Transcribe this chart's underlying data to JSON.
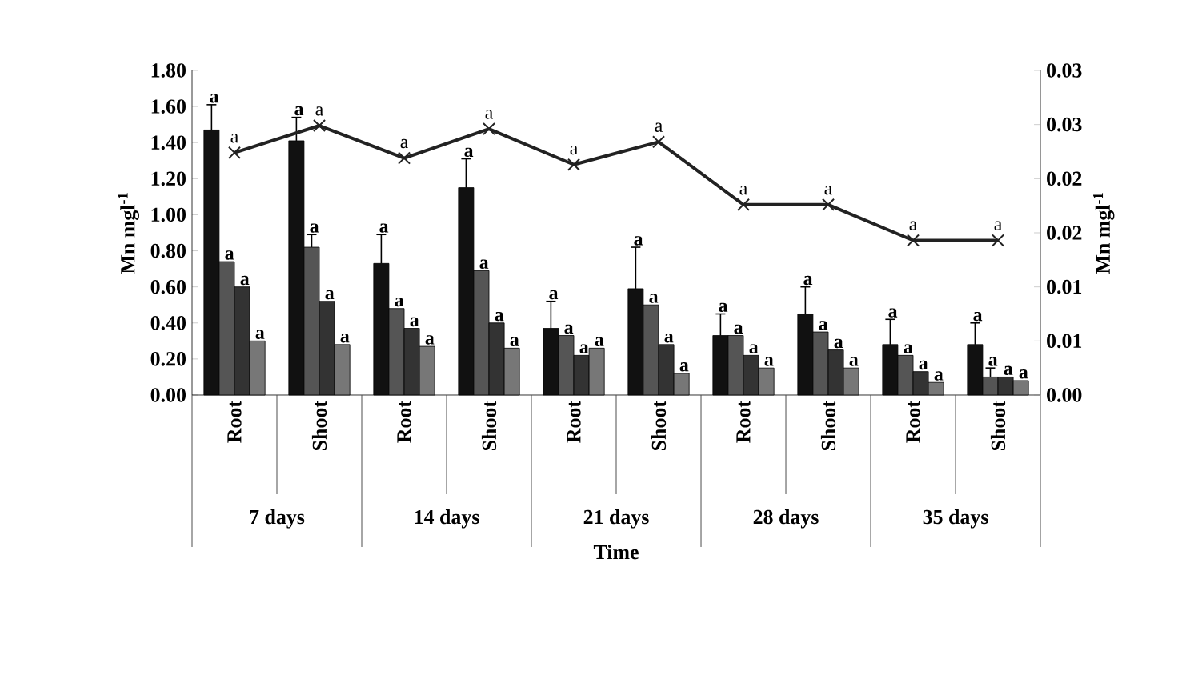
{
  "chart_data": {
    "type": "bar",
    "categories": [
      "Root",
      "Shoot",
      "Root",
      "Shoot",
      "Root",
      "Shoot",
      "Root",
      "Shoot",
      "Root",
      "Shoot"
    ],
    "series": [
      {
        "color": "#111111",
        "values": [
          1.47,
          1.41,
          0.73,
          1.15,
          0.37,
          0.59,
          0.33,
          0.45,
          0.28,
          0.28
        ],
        "errors": [
          [
            1.47,
            1.61
          ],
          [
            1.41,
            1.54
          ],
          [
            0.73,
            0.89
          ],
          [
            1.15,
            1.31
          ],
          [
            0.37,
            0.52
          ],
          [
            0.59,
            0.82
          ],
          [
            0.33,
            0.45
          ],
          [
            0.45,
            0.6
          ],
          [
            0.28,
            0.42
          ],
          [
            0.28,
            0.4
          ]
        ],
        "value_labels": [
          "a",
          "a",
          "a",
          "a",
          "a",
          "a",
          "a",
          "a",
          "a",
          "a"
        ]
      },
      {
        "color": "#555555",
        "values": [
          0.74,
          0.82,
          0.48,
          0.69,
          0.33,
          0.5,
          0.33,
          0.35,
          0.22,
          0.1
        ],
        "errors": [
          null,
          [
            0.82,
            0.89
          ],
          null,
          null,
          null,
          null,
          null,
          null,
          null,
          [
            0.1,
            0.15
          ]
        ],
        "value_labels": [
          "a",
          "a",
          "a",
          "a",
          "a",
          "a",
          "a",
          "a",
          "a",
          "a"
        ]
      },
      {
        "color": "#333333",
        "values": [
          0.6,
          0.52,
          0.37,
          0.4,
          0.22,
          0.28,
          0.22,
          0.25,
          0.13,
          0.1
        ],
        "value_labels": [
          "a",
          "a",
          "a",
          "a",
          "a",
          "a",
          "a",
          "a",
          "a",
          "a"
        ]
      },
      {
        "color": "#777777",
        "values": [
          0.3,
          0.28,
          0.27,
          0.26,
          0.26,
          0.12,
          0.15,
          0.15,
          0.07,
          0.08
        ],
        "value_labels": [
          "a",
          "a",
          "a",
          "a",
          "a",
          "a",
          "a",
          "a",
          "a",
          "a"
        ]
      },
      {
        "type": "line",
        "axis": "y2",
        "color": "#222222",
        "marker": "cross",
        "values": [
          0.0224,
          0.0249,
          0.0219,
          0.0246,
          0.0213,
          0.0234,
          0.0176,
          0.0176,
          0.0143,
          0.0143
        ],
        "value_labels": [
          "a",
          "a",
          "a",
          "a",
          "a",
          "a",
          "a",
          "a",
          "a",
          "a"
        ]
      }
    ],
    "xlabel": "Time",
    "ylabel": "Mn mgl$^{-1}$",
    "y2label": "Mn mgl$^{-1}$",
    "annotations": [
      "7 days",
      "14 days",
      "21 days",
      "28 days",
      "35 days"
    ],
    "ylim": [
      0,
      1.8
    ],
    "yticks": [
      {
        "value": 0,
        "label": "0.00"
      },
      {
        "value": 0.2,
        "label": "0.20"
      },
      {
        "value": 0.4,
        "label": "0.40"
      },
      {
        "value": 0.6,
        "label": "0.60"
      },
      {
        "value": 0.8,
        "label": "0.80"
      },
      {
        "value": 1.0,
        "label": "1.00"
      },
      {
        "value": 1.2,
        "label": "1.20"
      },
      {
        "value": 1.4,
        "label": "1.40"
      },
      {
        "value": 1.6,
        "label": "1.60"
      },
      {
        "value": 1.8,
        "label": "1.80"
      }
    ],
    "y2lim": [
      0,
      0.03
    ],
    "y2ticks": [
      {
        "value": 0,
        "label": "0.00"
      },
      {
        "value": 0.005,
        "label": "0.01"
      },
      {
        "value": 0.01,
        "label": "0.01"
      },
      {
        "value": 0.015,
        "label": "0.02"
      },
      {
        "value": 0.02,
        "label": "0.02"
      },
      {
        "value": 0.025,
        "label": "0.03"
      },
      {
        "value": 0.03,
        "label": "0.03"
      }
    ]
  }
}
